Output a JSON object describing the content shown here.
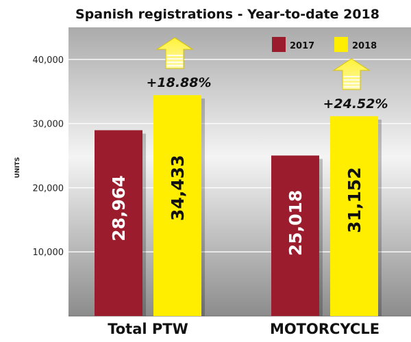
{
  "chart_data": {
    "type": "bar",
    "title": "Spanish registrations - Year-to-date 2018",
    "xlabel": "",
    "ylabel": "UNITS",
    "categories": [
      "Total PTW",
      "MOTORCYCLE"
    ],
    "series": [
      {
        "name": "2017",
        "color": "#9b1c2c",
        "values": [
          28964,
          25018
        ]
      },
      {
        "name": "2018",
        "color": "#ffee00",
        "values": [
          34433,
          31152
        ]
      }
    ],
    "value_labels": [
      [
        "28,964",
        "25,018"
      ],
      [
        "34,433",
        "31,152"
      ]
    ],
    "growth": [
      "+18.88%",
      "+24.52%"
    ],
    "ylim": [
      0,
      45000
    ],
    "yticks": [
      10000,
      20000,
      30000,
      40000
    ],
    "ytick_labels": [
      "10,000",
      "20,000",
      "30,000",
      "40,000"
    ],
    "legend": {
      "position": "top-right",
      "labels": [
        "2017",
        "2018"
      ]
    },
    "grid": true
  }
}
